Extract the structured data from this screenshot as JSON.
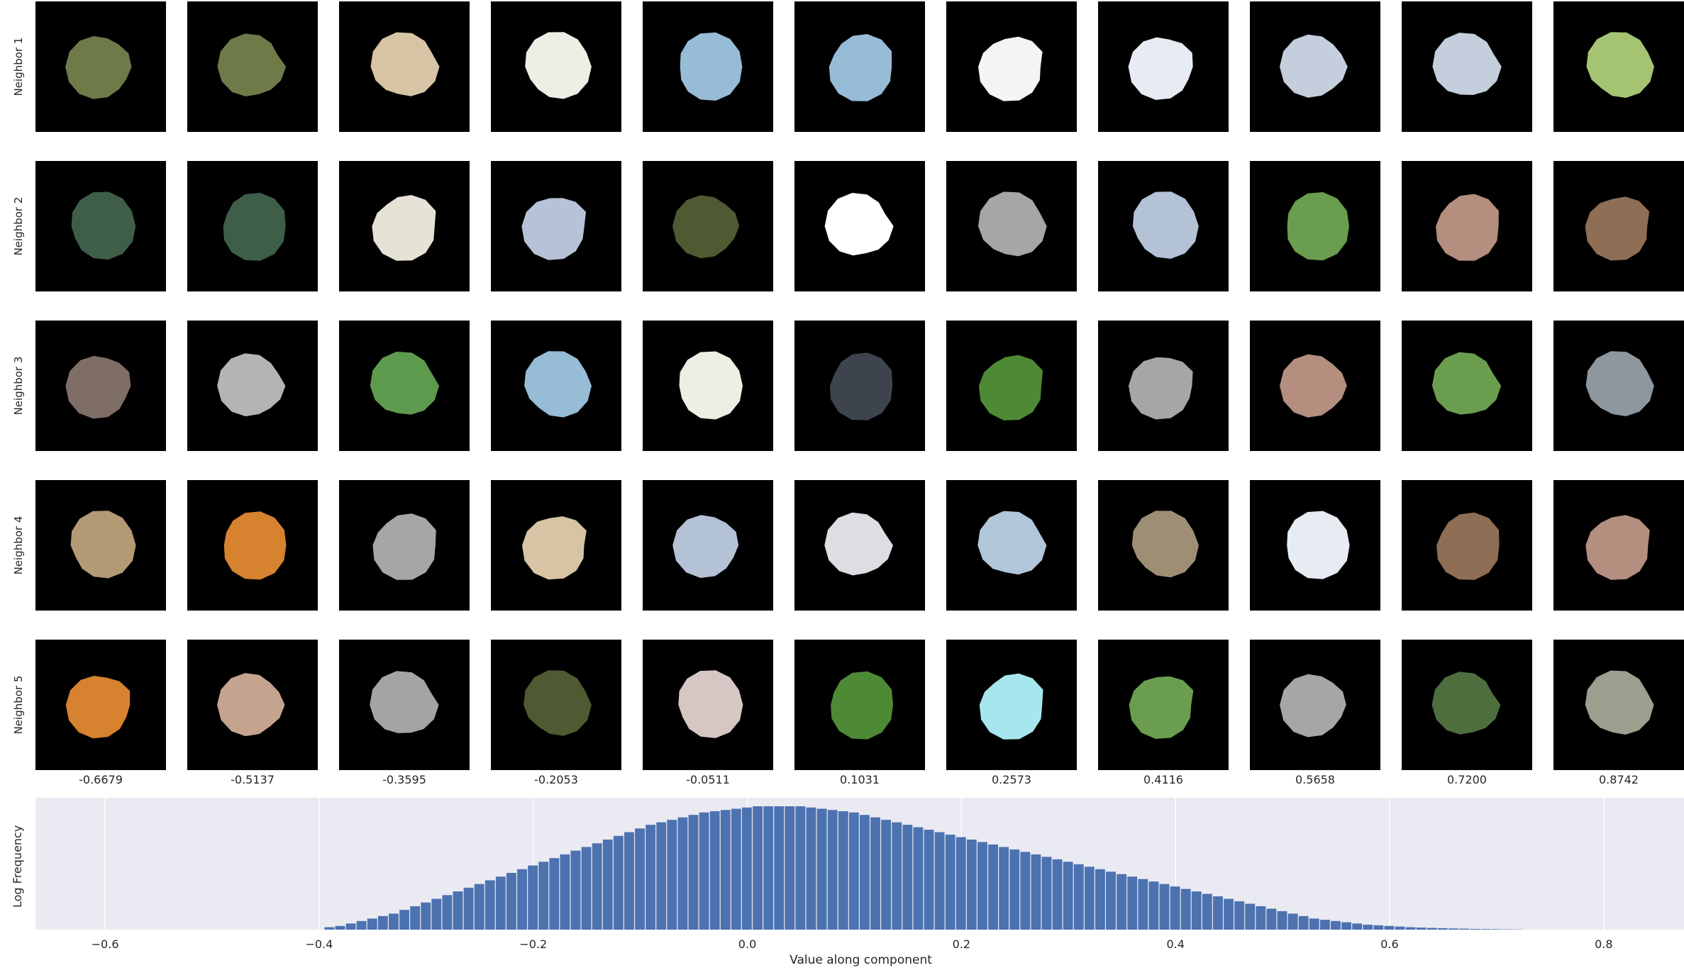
{
  "chart_data": [
    {
      "type": "image_grid",
      "rows": [
        "Neighbor 1",
        "Neighbor 2",
        "Neighbor 3",
        "Neighbor 4",
        "Neighbor 5"
      ],
      "columns": [
        "-0.6679",
        "-0.5137",
        "-0.3595",
        "-0.2053",
        "-0.0511",
        "0.1031",
        "0.2573",
        "0.4116",
        "0.5658",
        "0.7200",
        "0.8742"
      ]
    },
    {
      "type": "bar",
      "xlabel": "Value along component",
      "ylabel": "Log Frequency",
      "xticks": [
        "-0.6",
        "-0.4",
        "-0.2",
        "0.0",
        "0.2",
        "0.4",
        "0.6",
        "0.8"
      ],
      "xlim": [
        -0.665,
        0.875
      ],
      "grid": true,
      "bar_color": "#4c72b0",
      "background": "#eaeaf2",
      "bin_width": 0.01,
      "bins_start": -0.395,
      "log_frequency": [
        0.02,
        0.03,
        0.05,
        0.07,
        0.09,
        0.11,
        0.13,
        0.16,
        0.19,
        0.22,
        0.25,
        0.28,
        0.31,
        0.34,
        0.37,
        0.4,
        0.43,
        0.46,
        0.49,
        0.52,
        0.55,
        0.58,
        0.61,
        0.64,
        0.67,
        0.7,
        0.73,
        0.76,
        0.79,
        0.82,
        0.85,
        0.87,
        0.89,
        0.91,
        0.93,
        0.95,
        0.96,
        0.97,
        0.98,
        0.99,
        1.0,
        1.0,
        1.0,
        1.0,
        1.0,
        0.99,
        0.98,
        0.97,
        0.96,
        0.95,
        0.93,
        0.91,
        0.89,
        0.87,
        0.85,
        0.83,
        0.81,
        0.79,
        0.77,
        0.75,
        0.73,
        0.71,
        0.69,
        0.67,
        0.65,
        0.63,
        0.61,
        0.59,
        0.57,
        0.55,
        0.53,
        0.51,
        0.49,
        0.47,
        0.45,
        0.43,
        0.41,
        0.39,
        0.37,
        0.35,
        0.33,
        0.31,
        0.29,
        0.27,
        0.25,
        0.23,
        0.21,
        0.19,
        0.17,
        0.15,
        0.13,
        0.11,
        0.09,
        0.08,
        0.07,
        0.06,
        0.05,
        0.04,
        0.035,
        0.03,
        0.025,
        0.02,
        0.017,
        0.014,
        0.012,
        0.01,
        0.008,
        0.006,
        0.005,
        0.004,
        0.003,
        0.002
      ]
    }
  ],
  "tile_colors": [
    [
      "#6e7a48",
      "#6e7a48",
      "#d6c4a4",
      "#eeeee4",
      "#96bcd6",
      "#96bcd6",
      "#f2f4f6",
      "#e6ecf2",
      "#c4cedc",
      "#c4cedc",
      "#a4c474"
    ],
    [
      "#3e5e4a",
      "#3e5e4a",
      "#e6e2d6",
      "#b6c2d6",
      "#4e5a32",
      "#ffffff",
      "#a6a6a6",
      "#b4c2d6",
      "#6a9e4e",
      "#b48e7e",
      "#8e6e54"
    ],
    [
      "#7e6e66",
      "#b4b4b2",
      "#5e9a4e",
      "#96bcd6",
      "#eeeee4",
      "#3e444e",
      "#4e8a36",
      "#a6a6a4",
      "#b48e7e",
      "#6a9e4e",
      "#8e969e"
    ],
    [
      "#b49a74",
      "#d6822e",
      "#a6a6a4",
      "#d6c4a4",
      "#b4c2d6",
      "#dcdee4",
      "#b2c6da",
      "#9e8e74",
      "#e6ecf2",
      "#8e6e54",
      "#b48e7e"
    ],
    [
      "#d6822e",
      "#c4a48e",
      "#a4a4a6",
      "#4e5a32",
      "#d6c6c4",
      "#4e8a36",
      "#a6e6ee",
      "#6a9e4e",
      "#a6a6a6",
      "#4e6e3e",
      "#9e9e8e"
    ]
  ]
}
